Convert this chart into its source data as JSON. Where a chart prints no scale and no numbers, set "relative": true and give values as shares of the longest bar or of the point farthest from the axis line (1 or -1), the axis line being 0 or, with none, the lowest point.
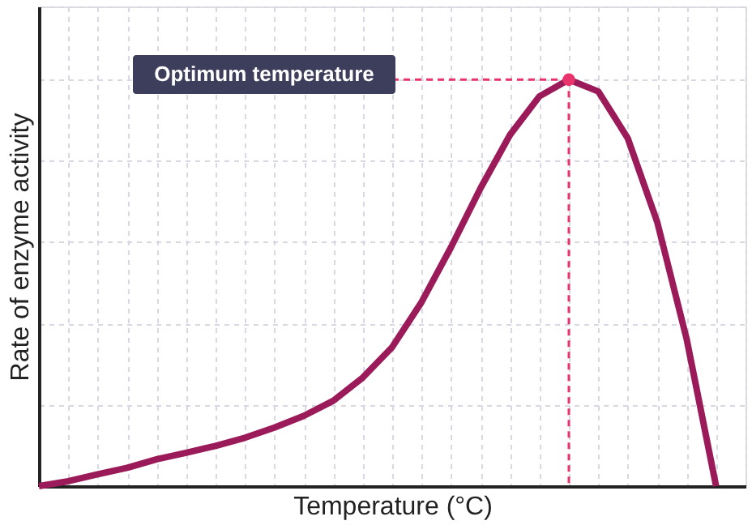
{
  "chart_data": {
    "type": "line",
    "relative": true,
    "xlabel": "Temperature (°C)",
    "ylabel": "Rate of enzyme activity",
    "categories": [
      null,
      null,
      null,
      null,
      null,
      null,
      null,
      null,
      null,
      null,
      null,
      null,
      null,
      null,
      null,
      null,
      null,
      null,
      null,
      null,
      null,
      null,
      null,
      null
    ],
    "series": [
      {
        "color": "#9b1b5a",
        "values": [
          0,
          0.012,
          0.029,
          0.045,
          0.066,
          0.082,
          0.099,
          0.119,
          0.144,
          0.173,
          0.21,
          0.267,
          0.342,
          0.453,
          0.588,
          0.733,
          0.864,
          0.959,
          1,
          0.971,
          0.856,
          0.65,
          0.362,
          0
        ]
      }
    ],
    "annotations": [
      "Optimum temperature"
    ],
    "grid": true,
    "line_style": "solid",
    "marker": "none"
  }
}
